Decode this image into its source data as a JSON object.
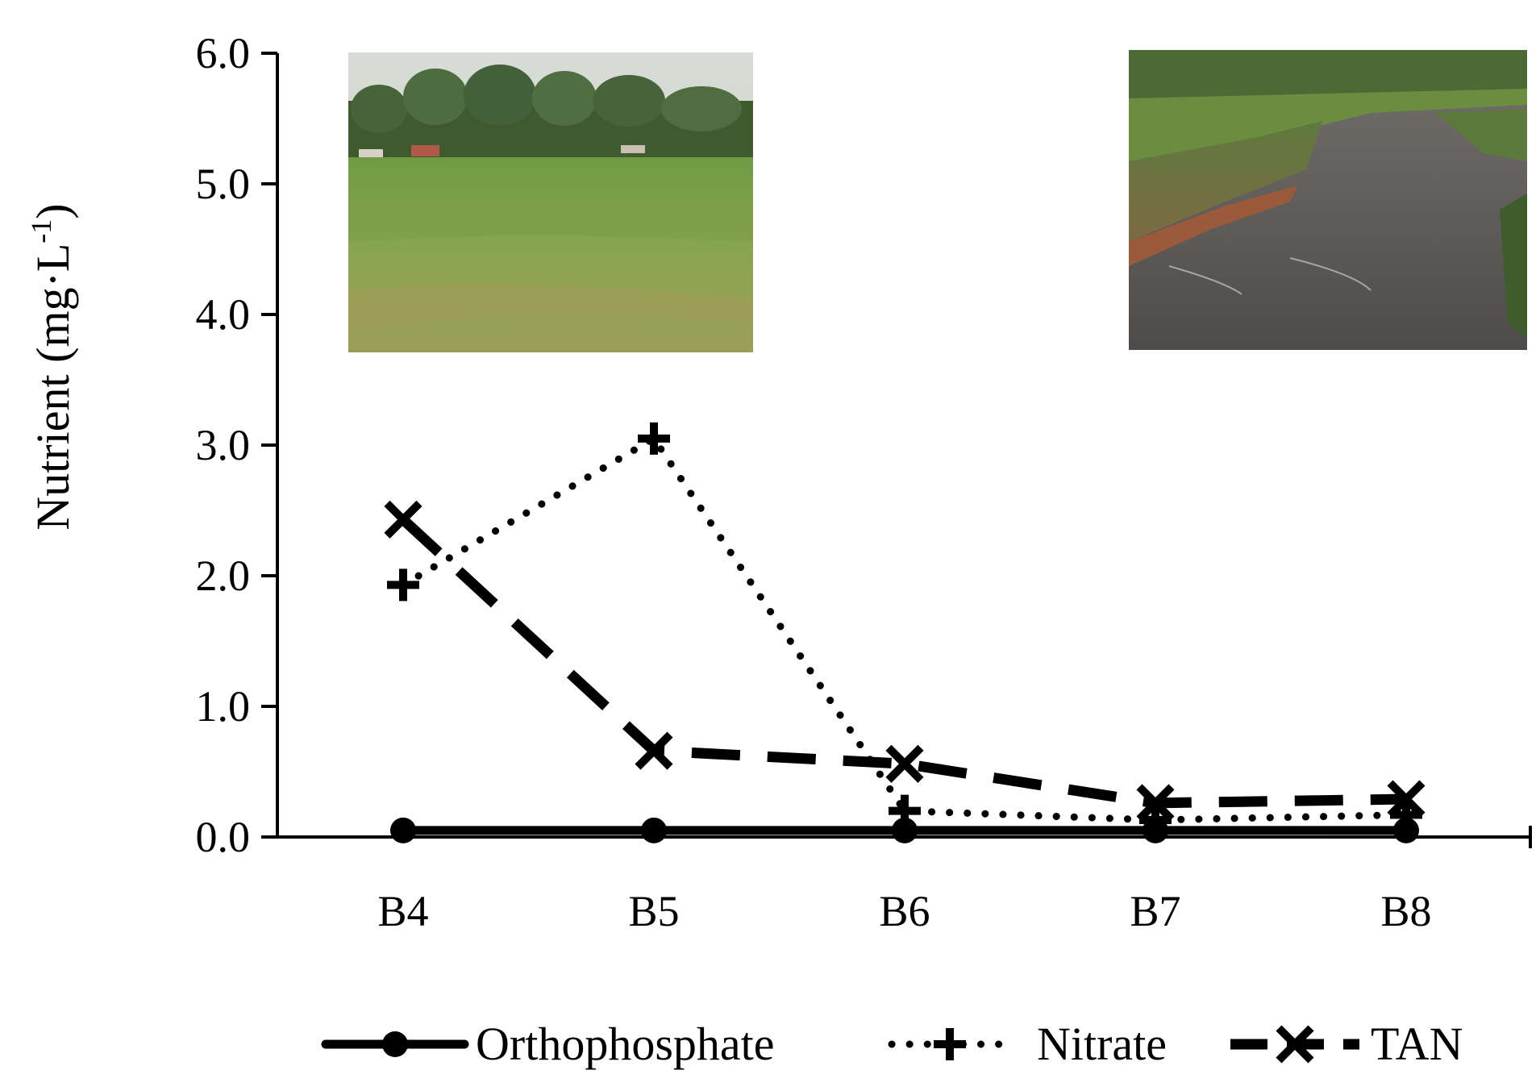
{
  "chart_data": {
    "type": "line",
    "title": "",
    "xlabel": "",
    "ylabel": "Nutrient (mg·L",
    "ylabel_superscript": "-1",
    "ylabel_close": ")",
    "categories": [
      "B4",
      "B5",
      "B6",
      "B7",
      "B8"
    ],
    "ylim": [
      0,
      6
    ],
    "yticks": [
      "0.0",
      "1.0",
      "2.0",
      "3.0",
      "4.0",
      "5.0",
      "6.0"
    ],
    "grid": false,
    "legend_position": "bottom",
    "series": [
      {
        "name": "Orthophosphate",
        "values": [
          0.05,
          0.05,
          0.05,
          0.05,
          0.05
        ],
        "style": "solid",
        "marker": "circle"
      },
      {
        "name": "Nitrate",
        "values": [
          1.93,
          3.05,
          0.2,
          0.13,
          0.17
        ],
        "style": "dotted",
        "marker": "plus"
      },
      {
        "name": "TAN",
        "values": [
          2.43,
          0.66,
          0.56,
          0.26,
          0.29
        ],
        "style": "dashed",
        "marker": "x"
      }
    ],
    "color": "#000000"
  },
  "photos": {
    "left": "grassland-photo",
    "right": "river-photo"
  }
}
